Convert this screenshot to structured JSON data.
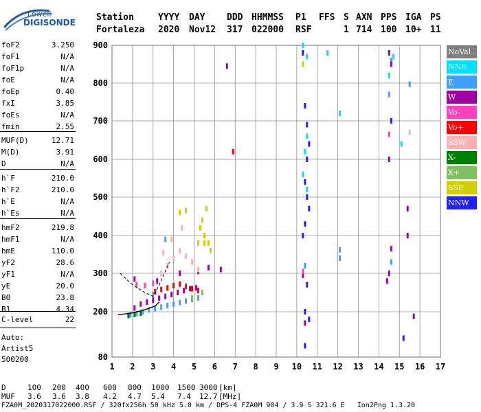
{
  "logo": {
    "line1": "Lowell",
    "line2": "DIGISONDE"
  },
  "header": {
    "labels": [
      "Station",
      "YYYY",
      "DAY",
      "DDD",
      "HHMMSS",
      "P1",
      "FFS",
      "S",
      "AXN",
      "PPS",
      "IGA",
      "PS"
    ],
    "values": [
      "Fortaleza",
      "2020",
      "Nov12",
      "317",
      "022000",
      "RSF",
      "1",
      "714",
      "100",
      "10+",
      "11"
    ]
  },
  "params_group1": [
    {
      "name": "foF2",
      "value": "3.250"
    },
    {
      "name": "foF1",
      "value": "N/A"
    },
    {
      "name": "foF1p",
      "value": "N/A"
    },
    {
      "name": "foE",
      "value": "N/A"
    },
    {
      "name": "foEp",
      "value": "0.40"
    },
    {
      "name": "fxI",
      "value": "3.85"
    },
    {
      "name": "foEs",
      "value": "N/A"
    },
    {
      "name": "fmin",
      "value": "2.55"
    }
  ],
  "params_group2": [
    {
      "name": "MUF(D)",
      "value": "12.71"
    },
    {
      "name": "M(D)",
      "value": "3.91"
    },
    {
      "name": "D",
      "value": "N/A"
    }
  ],
  "params_group3": [
    {
      "name": "h`F",
      "value": "210.0"
    },
    {
      "name": "h`F2",
      "value": "210.0"
    },
    {
      "name": "h`E",
      "value": "N/A"
    },
    {
      "name": "h`Es",
      "value": "N/A"
    }
  ],
  "params_group4": [
    {
      "name": "hmF2",
      "value": "219.8"
    },
    {
      "name": "hmF1",
      "value": "N/A"
    },
    {
      "name": "hmE",
      "value": "110.0"
    },
    {
      "name": "yF2",
      "value": "28.6"
    },
    {
      "name": "yF1",
      "value": "N/A"
    },
    {
      "name": "yE",
      "value": "20.0"
    },
    {
      "name": "B0",
      "value": "23.8"
    },
    {
      "name": "B1",
      "value": "4.34"
    }
  ],
  "params_group5": [
    {
      "name": "C-level",
      "value": "22"
    }
  ],
  "scaling": {
    "line1": "Auto:",
    "line2": "Artist5",
    "line3": "500200"
  },
  "legend": [
    {
      "label": "NoVal",
      "color": "#808080"
    },
    {
      "label": "NNE",
      "color": "#00e0ff"
    },
    {
      "label": "E",
      "color": "#40a0ff"
    },
    {
      "label": "W",
      "color": "#a000a0"
    },
    {
      "label": "Vo-",
      "color": "#ff40c0"
    },
    {
      "label": "Vo+",
      "color": "#ff0000"
    },
    {
      "label": "SSW",
      "color": "#ffb0b0"
    },
    {
      "label": "X-",
      "color": "#008000"
    },
    {
      "label": "X+",
      "color": "#80c060"
    },
    {
      "label": "SSE",
      "color": "#d0d000"
    },
    {
      "label": "NNW",
      "color": "#2020ff"
    }
  ],
  "footer": {
    "d_label": "D",
    "d_values": [
      "100",
      "200",
      "400",
      "600",
      "800",
      "1000",
      "1500",
      "3000",
      "[km]"
    ],
    "muf_label": "MUF",
    "muf_values": [
      "3.6",
      "3.6",
      "3.8",
      "4.2",
      "4.7",
      "5.4",
      "7.4",
      "12.7",
      "[MHz]"
    ],
    "file_info": "FZA0M_2020317022000.RSF / 320fx256h 50 kHz 5.0 km / DPS-4 FZA0M 904 / 3.9 S 321.6 E   Ion2Png 1.3.20"
  },
  "chart_data": {
    "type": "scatter",
    "title": "",
    "xlabel": "",
    "ylabel": "",
    "xlim": [
      1,
      17
    ],
    "ylim": [
      80,
      900
    ],
    "x_ticks": [
      "1",
      "2",
      "3",
      "4",
      "5",
      "6",
      "7",
      "8",
      "9",
      "10",
      "11",
      "12",
      "13",
      "14",
      "15",
      "16",
      "17"
    ],
    "y_ticks": [
      "80",
      "200",
      "300",
      "400",
      "500",
      "600",
      "700",
      "800",
      "900"
    ],
    "grid": true,
    "series": [
      {
        "name": "E",
        "color": "#40a0ff",
        "points": [
          [
            1.9,
            192
          ],
          [
            2.2,
            195
          ],
          [
            2.5,
            200
          ],
          [
            2.8,
            205
          ],
          [
            3.1,
            208
          ],
          [
            3.4,
            212
          ],
          [
            3.7,
            216
          ],
          [
            4.0,
            220
          ],
          [
            4.3,
            224
          ],
          [
            4.6,
            228
          ],
          [
            4.9,
            232
          ],
          [
            5.2,
            236
          ],
          [
            3.0,
            245
          ],
          [
            3.6,
            390
          ],
          [
            10.4,
            320
          ],
          [
            12.1,
            340
          ],
          [
            12.1,
            362
          ],
          [
            14.6,
            330
          ],
          [
            15.5,
            797
          ],
          [
            14.5,
            770
          ],
          [
            14.6,
            860
          ]
        ]
      },
      {
        "name": "X-",
        "color": "#008000",
        "points": [
          [
            1.8,
            190
          ],
          [
            2.1,
            193
          ],
          [
            2.4,
            196
          ]
        ]
      },
      {
        "name": "W",
        "color": "#a000a0",
        "points": [
          [
            2.1,
            210
          ],
          [
            2.4,
            220
          ],
          [
            2.7,
            225
          ],
          [
            3.0,
            230
          ],
          [
            3.3,
            235
          ],
          [
            3.6,
            240
          ],
          [
            3.9,
            245
          ],
          [
            4.2,
            250
          ],
          [
            4.5,
            255
          ],
          [
            4.8,
            260
          ],
          [
            5.1,
            262
          ],
          [
            2.1,
            285
          ],
          [
            3.2,
            280
          ],
          [
            4.3,
            300
          ],
          [
            5.2,
            305
          ],
          [
            5.7,
            315
          ],
          [
            6.3,
            310
          ],
          [
            6.6,
            845
          ],
          [
            10.3,
            295
          ],
          [
            10.4,
            170
          ],
          [
            14.5,
            880
          ],
          [
            14.6,
            850
          ],
          [
            14.5,
            600
          ],
          [
            14.5,
            300
          ],
          [
            14.4,
            280
          ],
          [
            14.6,
            365
          ],
          [
            15.4,
            470
          ],
          [
            15.4,
            400
          ],
          [
            15.7,
            188
          ]
        ]
      },
      {
        "name": "Vo+",
        "color": "#ff0000",
        "points": [
          [
            3.1,
            252
          ],
          [
            3.4,
            258
          ],
          [
            3.7,
            262
          ],
          [
            4.0,
            268
          ],
          [
            4.3,
            272
          ],
          [
            4.6,
            266
          ],
          [
            4.9,
            260
          ],
          [
            5.2,
            255
          ],
          [
            6.9,
            620
          ]
        ]
      },
      {
        "name": "SSW",
        "color": "#ffb0b0",
        "points": [
          [
            3.4,
            300
          ],
          [
            3.7,
            320
          ],
          [
            4.0,
            340
          ],
          [
            4.3,
            360
          ],
          [
            4.6,
            345
          ],
          [
            4.9,
            330
          ],
          [
            5.2,
            310
          ],
          [
            3.9,
            390
          ],
          [
            4.4,
            420
          ],
          [
            3.5,
            355
          ],
          [
            15.5,
            670
          ]
        ]
      },
      {
        "name": "SSE",
        "color": "#d0d000",
        "points": [
          [
            4.3,
            460
          ],
          [
            4.6,
            465
          ],
          [
            5.3,
            420
          ],
          [
            5.5,
            400
          ],
          [
            5.7,
            380
          ],
          [
            5.4,
            440
          ],
          [
            5.6,
            470
          ],
          [
            5.8,
            360
          ],
          [
            5.5,
            380
          ],
          [
            5.2,
            380
          ],
          [
            10.3,
            850
          ]
        ]
      },
      {
        "name": "NNW",
        "color": "#2020ff",
        "points": [
          [
            10.3,
            880
          ],
          [
            10.4,
            740
          ],
          [
            10.5,
            690
          ],
          [
            10.6,
            640
          ],
          [
            10.5,
            600
          ],
          [
            10.4,
            540
          ],
          [
            10.5,
            500
          ],
          [
            10.6,
            470
          ],
          [
            10.4,
            430
          ],
          [
            10.3,
            400
          ],
          [
            10.5,
            270
          ],
          [
            10.4,
            200
          ],
          [
            10.6,
            180
          ],
          [
            10.4,
            110
          ],
          [
            14.6,
            700
          ],
          [
            15.2,
            130
          ]
        ]
      },
      {
        "name": "NNE",
        "color": "#00e0ff",
        "points": [
          [
            10.3,
            900
          ],
          [
            10.5,
            870
          ],
          [
            10.5,
            660
          ],
          [
            10.4,
            620
          ],
          [
            10.3,
            560
          ],
          [
            10.5,
            520
          ],
          [
            11.5,
            880
          ],
          [
            12.1,
            720
          ],
          [
            14.5,
            820
          ],
          [
            14.7,
            870
          ],
          [
            15.1,
            640
          ]
        ]
      },
      {
        "name": "Vo-",
        "color": "#ff40c0",
        "points": [
          [
            2.2,
            270
          ],
          [
            2.6,
            268
          ],
          [
            3.0,
            274
          ],
          [
            10.3,
            305
          ],
          [
            14.5,
            665
          ]
        ]
      },
      {
        "name": "X+",
        "color": "#80c060",
        "points": [
          [
            4.9,
            236
          ],
          [
            5.4,
            250
          ]
        ]
      }
    ]
  }
}
